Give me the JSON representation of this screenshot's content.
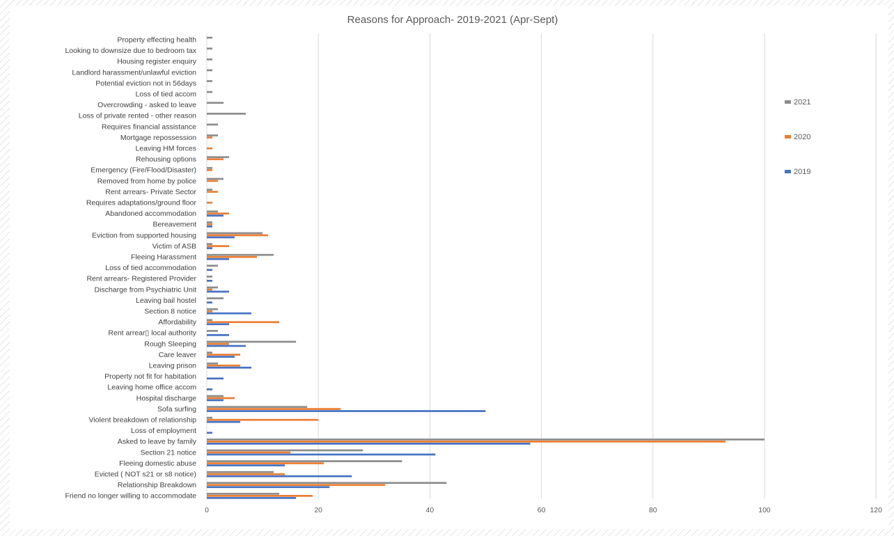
{
  "chart_data": {
    "type": "bar",
    "orientation": "horizontal",
    "title": "Reasons for Approach- 2019-2021 (Apr-Sept)",
    "xlabel": "",
    "ylabel": "",
    "xlim": [
      0,
      120
    ],
    "xticks": [
      0,
      20,
      40,
      60,
      80,
      100,
      120
    ],
    "grid": true,
    "legend_position": "right",
    "categories": [
      "Property effecting health",
      "Looking to downsize due to bedroom tax",
      "Housing register enquiry",
      "Landlord harassment/unlawful eviction",
      "Potential eviction not in 56days",
      "Loss of tied accom",
      "Overcrowding - asked to leave",
      "Loss of private rented - other reason",
      "Requires financial assistance",
      "Mortgage repossession",
      "Leaving HM forces",
      "Rehousing options",
      "Emergency (Fire/Flood/Disaster)",
      "Removed from home by police",
      "Rent arrears- Private Sector",
      "Requires adaptations/ground floor",
      "Abandoned accommodation",
      "Bereavement",
      "Eviction from supported housing",
      "Victim of ASB",
      "Fleeing Harassment",
      "Loss of tied accommodation",
      "Rent arrears- Registered Provider",
      "Discharge from Psychiatric Unit",
      "Leaving bail hostel",
      "Section 8 notice",
      "Affordability",
      "Rent arrear\u0000 local authority",
      "Rough Sleeping",
      "Care leaver",
      "Leaving prison",
      "Property not fit for habitation",
      "Leaving home office accom",
      "Hospital discharge",
      "Sofa surfing",
      "Violent breakdown of relationship",
      "Loss of employment",
      "Asked to leave by family",
      "Section 21 notice",
      "Fleeing domestic abuse",
      "Evicted ( NOT s21 or s8 notice)",
      "Relationship Breakdown",
      "Friend no longer willing to accommodate"
    ],
    "series": [
      {
        "name": "2021",
        "color": "#8c8c8c",
        "values": [
          1,
          1,
          1,
          1,
          1,
          1,
          3,
          7,
          2,
          2,
          0,
          4,
          1,
          3,
          1,
          0,
          2,
          1,
          10,
          1,
          12,
          2,
          1,
          2,
          3,
          2,
          1,
          2,
          16,
          1,
          2,
          0,
          0,
          3,
          18,
          1,
          0,
          100,
          28,
          35,
          12,
          43,
          13
        ]
      },
      {
        "name": "2020",
        "color": "#ed7d31",
        "values": [
          0,
          0,
          0,
          0,
          0,
          0,
          0,
          0,
          0,
          1,
          1,
          3,
          1,
          2,
          2,
          1,
          4,
          1,
          11,
          4,
          9,
          0,
          0,
          1,
          0,
          1,
          13,
          0,
          4,
          6,
          6,
          0,
          0,
          5,
          24,
          20,
          0,
          93,
          15,
          21,
          14,
          32,
          19
        ]
      },
      {
        "name": "2019",
        "color": "#4472c4",
        "values": [
          0,
          0,
          0,
          0,
          0,
          0,
          0,
          0,
          0,
          0,
          0,
          0,
          0,
          0,
          0,
          0,
          3,
          1,
          5,
          1,
          4,
          1,
          1,
          4,
          1,
          8,
          4,
          4,
          7,
          5,
          8,
          3,
          1,
          3,
          50,
          6,
          1,
          58,
          41,
          14,
          26,
          22,
          16
        ]
      }
    ]
  },
  "chart_area": {
    "title": "Reasons for Approach- 2019-2021 (Apr-Sept)"
  }
}
